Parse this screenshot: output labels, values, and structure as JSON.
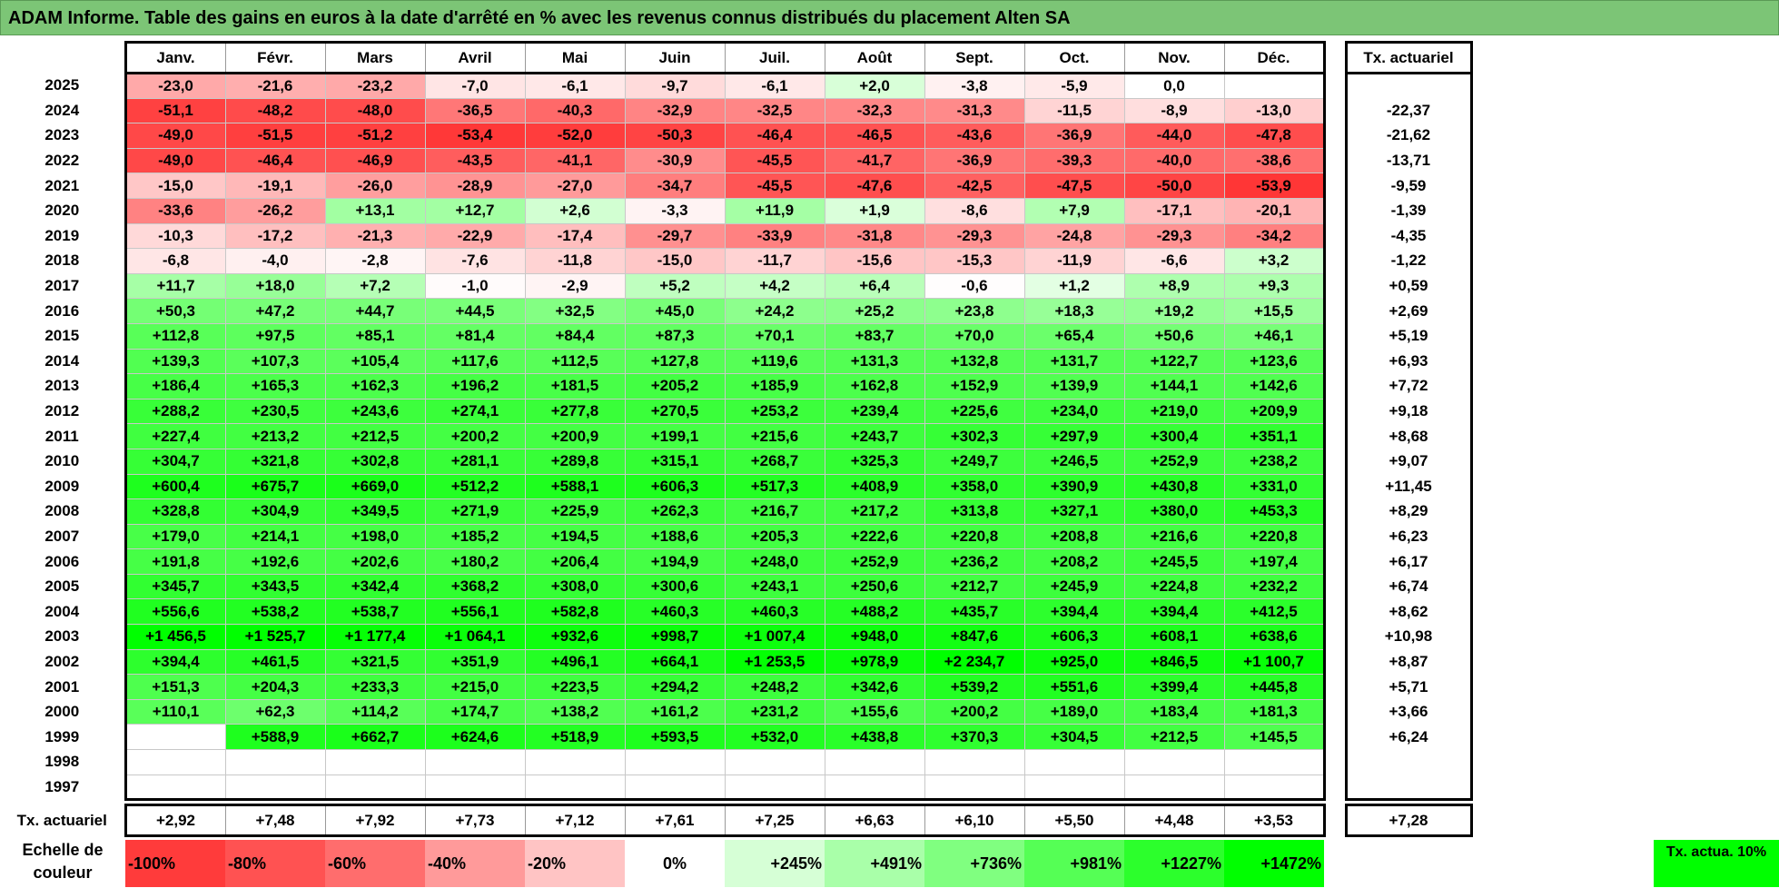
{
  "title": "ADAM Informe. Table des gains en euros à la date d'arrêté en % avec les revenus connus distribués du placement Alten SA",
  "months": [
    "Janv.",
    "Févr.",
    "Mars",
    "Avril",
    "Mai",
    "Juin",
    "Juil.",
    "Août",
    "Sept.",
    "Oct.",
    "Nov.",
    "Déc."
  ],
  "tx_header": "Tx. actuariel",
  "rows": [
    {
      "year": "2025",
      "values": [
        "-23,0",
        "-21,6",
        "-23,2",
        "-7,0",
        "-6,1",
        "-9,7",
        "-6,1",
        "+2,0",
        "-3,8",
        "-5,9",
        "0,0",
        ""
      ],
      "tx": ""
    },
    {
      "year": "2024",
      "values": [
        "-51,1",
        "-48,2",
        "-48,0",
        "-36,5",
        "-40,3",
        "-32,9",
        "-32,5",
        "-32,3",
        "-31,3",
        "-11,5",
        "-8,9",
        "-13,0"
      ],
      "tx": "-22,37"
    },
    {
      "year": "2023",
      "values": [
        "-49,0",
        "-51,5",
        "-51,2",
        "-53,4",
        "-52,0",
        "-50,3",
        "-46,4",
        "-46,5",
        "-43,6",
        "-36,9",
        "-44,0",
        "-47,8"
      ],
      "tx": "-21,62"
    },
    {
      "year": "2022",
      "values": [
        "-49,0",
        "-46,4",
        "-46,9",
        "-43,5",
        "-41,1",
        "-30,9",
        "-45,5",
        "-41,7",
        "-36,9",
        "-39,3",
        "-40,0",
        "-38,6"
      ],
      "tx": "-13,71"
    },
    {
      "year": "2021",
      "values": [
        "-15,0",
        "-19,1",
        "-26,0",
        "-28,9",
        "-27,0",
        "-34,7",
        "-45,5",
        "-47,6",
        "-42,5",
        "-47,5",
        "-50,0",
        "-53,9"
      ],
      "tx": "-9,59"
    },
    {
      "year": "2020",
      "values": [
        "-33,6",
        "-26,2",
        "+13,1",
        "+12,7",
        "+2,6",
        "-3,3",
        "+11,9",
        "+1,9",
        "-8,6",
        "+7,9",
        "-17,1",
        "-20,1"
      ],
      "tx": "-1,39"
    },
    {
      "year": "2019",
      "values": [
        "-10,3",
        "-17,2",
        "-21,3",
        "-22,9",
        "-17,4",
        "-29,7",
        "-33,9",
        "-31,8",
        "-29,3",
        "-24,8",
        "-29,3",
        "-34,2"
      ],
      "tx": "-4,35"
    },
    {
      "year": "2018",
      "values": [
        "-6,8",
        "-4,0",
        "-2,8",
        "-7,6",
        "-11,8",
        "-15,0",
        "-11,7",
        "-15,6",
        "-15,3",
        "-11,9",
        "-6,6",
        "+3,2"
      ],
      "tx": "-1,22"
    },
    {
      "year": "2017",
      "values": [
        "+11,7",
        "+18,0",
        "+7,2",
        "-1,0",
        "-2,9",
        "+5,2",
        "+4,2",
        "+6,4",
        "-0,6",
        "+1,2",
        "+8,9",
        "+9,3"
      ],
      "tx": "+0,59"
    },
    {
      "year": "2016",
      "values": [
        "+50,3",
        "+47,2",
        "+44,7",
        "+44,5",
        "+32,5",
        "+45,0",
        "+24,2",
        "+25,2",
        "+23,8",
        "+18,3",
        "+19,2",
        "+15,5"
      ],
      "tx": "+2,69"
    },
    {
      "year": "2015",
      "values": [
        "+112,8",
        "+97,5",
        "+85,1",
        "+81,4",
        "+84,4",
        "+87,3",
        "+70,1",
        "+83,7",
        "+70,0",
        "+65,4",
        "+50,6",
        "+46,1"
      ],
      "tx": "+5,19"
    },
    {
      "year": "2014",
      "values": [
        "+139,3",
        "+107,3",
        "+105,4",
        "+117,6",
        "+112,5",
        "+127,8",
        "+119,6",
        "+131,3",
        "+132,8",
        "+131,7",
        "+122,7",
        "+123,6"
      ],
      "tx": "+6,93"
    },
    {
      "year": "2013",
      "values": [
        "+186,4",
        "+165,3",
        "+162,3",
        "+196,2",
        "+181,5",
        "+205,2",
        "+185,9",
        "+162,8",
        "+152,9",
        "+139,9",
        "+144,1",
        "+142,6"
      ],
      "tx": "+7,72"
    },
    {
      "year": "2012",
      "values": [
        "+288,2",
        "+230,5",
        "+243,6",
        "+274,1",
        "+277,8",
        "+270,5",
        "+253,2",
        "+239,4",
        "+225,6",
        "+234,0",
        "+219,0",
        "+209,9"
      ],
      "tx": "+9,18"
    },
    {
      "year": "2011",
      "values": [
        "+227,4",
        "+213,2",
        "+212,5",
        "+200,2",
        "+200,9",
        "+199,1",
        "+215,6",
        "+243,7",
        "+302,3",
        "+297,9",
        "+300,4",
        "+351,1"
      ],
      "tx": "+8,68"
    },
    {
      "year": "2010",
      "values": [
        "+304,7",
        "+321,8",
        "+302,8",
        "+281,1",
        "+289,8",
        "+315,1",
        "+268,7",
        "+325,3",
        "+249,7",
        "+246,5",
        "+252,9",
        "+238,2"
      ],
      "tx": "+9,07"
    },
    {
      "year": "2009",
      "values": [
        "+600,4",
        "+675,7",
        "+669,0",
        "+512,2",
        "+588,1",
        "+606,3",
        "+517,3",
        "+408,9",
        "+358,0",
        "+390,9",
        "+430,8",
        "+331,0"
      ],
      "tx": "+11,45"
    },
    {
      "year": "2008",
      "values": [
        "+328,8",
        "+304,9",
        "+349,5",
        "+271,9",
        "+225,9",
        "+262,3",
        "+216,7",
        "+217,2",
        "+313,8",
        "+327,1",
        "+380,0",
        "+453,3"
      ],
      "tx": "+8,29"
    },
    {
      "year": "2007",
      "values": [
        "+179,0",
        "+214,1",
        "+198,0",
        "+185,2",
        "+194,5",
        "+188,6",
        "+205,3",
        "+222,6",
        "+220,8",
        "+208,8",
        "+216,6",
        "+220,8"
      ],
      "tx": "+6,23"
    },
    {
      "year": "2006",
      "values": [
        "+191,8",
        "+192,6",
        "+202,6",
        "+180,2",
        "+206,4",
        "+194,9",
        "+248,0",
        "+252,9",
        "+236,2",
        "+208,2",
        "+245,5",
        "+197,4"
      ],
      "tx": "+6,17"
    },
    {
      "year": "2005",
      "values": [
        "+345,7",
        "+343,5",
        "+342,4",
        "+368,2",
        "+308,0",
        "+300,6",
        "+243,1",
        "+250,6",
        "+212,7",
        "+245,9",
        "+224,8",
        "+232,2"
      ],
      "tx": "+6,74"
    },
    {
      "year": "2004",
      "values": [
        "+556,6",
        "+538,2",
        "+538,7",
        "+556,1",
        "+582,8",
        "+460,3",
        "+460,3",
        "+488,2",
        "+435,7",
        "+394,4",
        "+394,4",
        "+412,5"
      ],
      "tx": "+8,62"
    },
    {
      "year": "2003",
      "values": [
        "+1 456,5",
        "+1 525,7",
        "+1 177,4",
        "+1 064,1",
        "+932,6",
        "+998,7",
        "+1 007,4",
        "+948,0",
        "+847,6",
        "+606,3",
        "+608,1",
        "+638,6"
      ],
      "tx": "+10,98"
    },
    {
      "year": "2002",
      "values": [
        "+394,4",
        "+461,5",
        "+321,5",
        "+351,9",
        "+496,1",
        "+664,1",
        "+1 253,5",
        "+978,9",
        "+2 234,7",
        "+925,0",
        "+846,5",
        "+1 100,7"
      ],
      "tx": "+8,87"
    },
    {
      "year": "2001",
      "values": [
        "+151,3",
        "+204,3",
        "+233,3",
        "+215,0",
        "+223,5",
        "+294,2",
        "+248,2",
        "+342,6",
        "+539,2",
        "+551,6",
        "+399,4",
        "+445,8"
      ],
      "tx": "+5,71"
    },
    {
      "year": "2000",
      "values": [
        "+110,1",
        "+62,3",
        "+114,2",
        "+174,7",
        "+138,2",
        "+161,2",
        "+231,2",
        "+155,6",
        "+200,2",
        "+189,0",
        "+183,4",
        "+181,3"
      ],
      "tx": "+3,66"
    },
    {
      "year": "1999",
      "values": [
        "",
        "+588,9",
        "+662,7",
        "+624,6",
        "+518,9",
        "+593,5",
        "+532,0",
        "+438,8",
        "+370,3",
        "+304,5",
        "+212,5",
        "+145,5"
      ],
      "tx": "+6,24"
    },
    {
      "year": "1998",
      "values": [
        "",
        "",
        "",
        "",
        "",
        "",
        "",
        "",
        "",
        "",
        "",
        ""
      ],
      "tx": ""
    },
    {
      "year": "1997",
      "values": [
        "",
        "",
        "",
        "",
        "",
        "",
        "",
        "",
        "",
        "",
        "",
        ""
      ],
      "tx": ""
    }
  ],
  "footer": {
    "label": "Tx. actuariel",
    "values": [
      "+2,92",
      "+7,48",
      "+7,92",
      "+7,73",
      "+7,12",
      "+7,61",
      "+7,25",
      "+6,63",
      "+6,10",
      "+5,50",
      "+4,48",
      "+3,53"
    ],
    "tx": "+7,28"
  },
  "scale": {
    "label": "Echelle de couleur",
    "items": [
      {
        "text": "-100%",
        "color": "#ff3b3b",
        "align": "left"
      },
      {
        "text": "-80%",
        "color": "#ff5252",
        "align": "left"
      },
      {
        "text": "-60%",
        "color": "#ff6d6d",
        "align": "left"
      },
      {
        "text": "-40%",
        "color": "#ff9a9a",
        "align": "left"
      },
      {
        "text": "-20%",
        "color": "#ffc4c4",
        "align": "left"
      },
      {
        "text": "0%",
        "color": "#ffffff",
        "align": "center"
      },
      {
        "text": "+245%",
        "color": "#d6ffd6",
        "align": "right"
      },
      {
        "text": "+491%",
        "color": "#a9ffa9",
        "align": "right"
      },
      {
        "text": "+736%",
        "color": "#80ff80",
        "align": "right"
      },
      {
        "text": "+981%",
        "color": "#55ff55",
        "align": "right"
      },
      {
        "text": "+1227%",
        "color": "#2cff2c",
        "align": "right"
      },
      {
        "text": "+1472%",
        "color": "#00ff00",
        "align": "right"
      }
    ],
    "tx_label": "Tx. actua. 10%",
    "tx_color": "#00ff00"
  }
}
